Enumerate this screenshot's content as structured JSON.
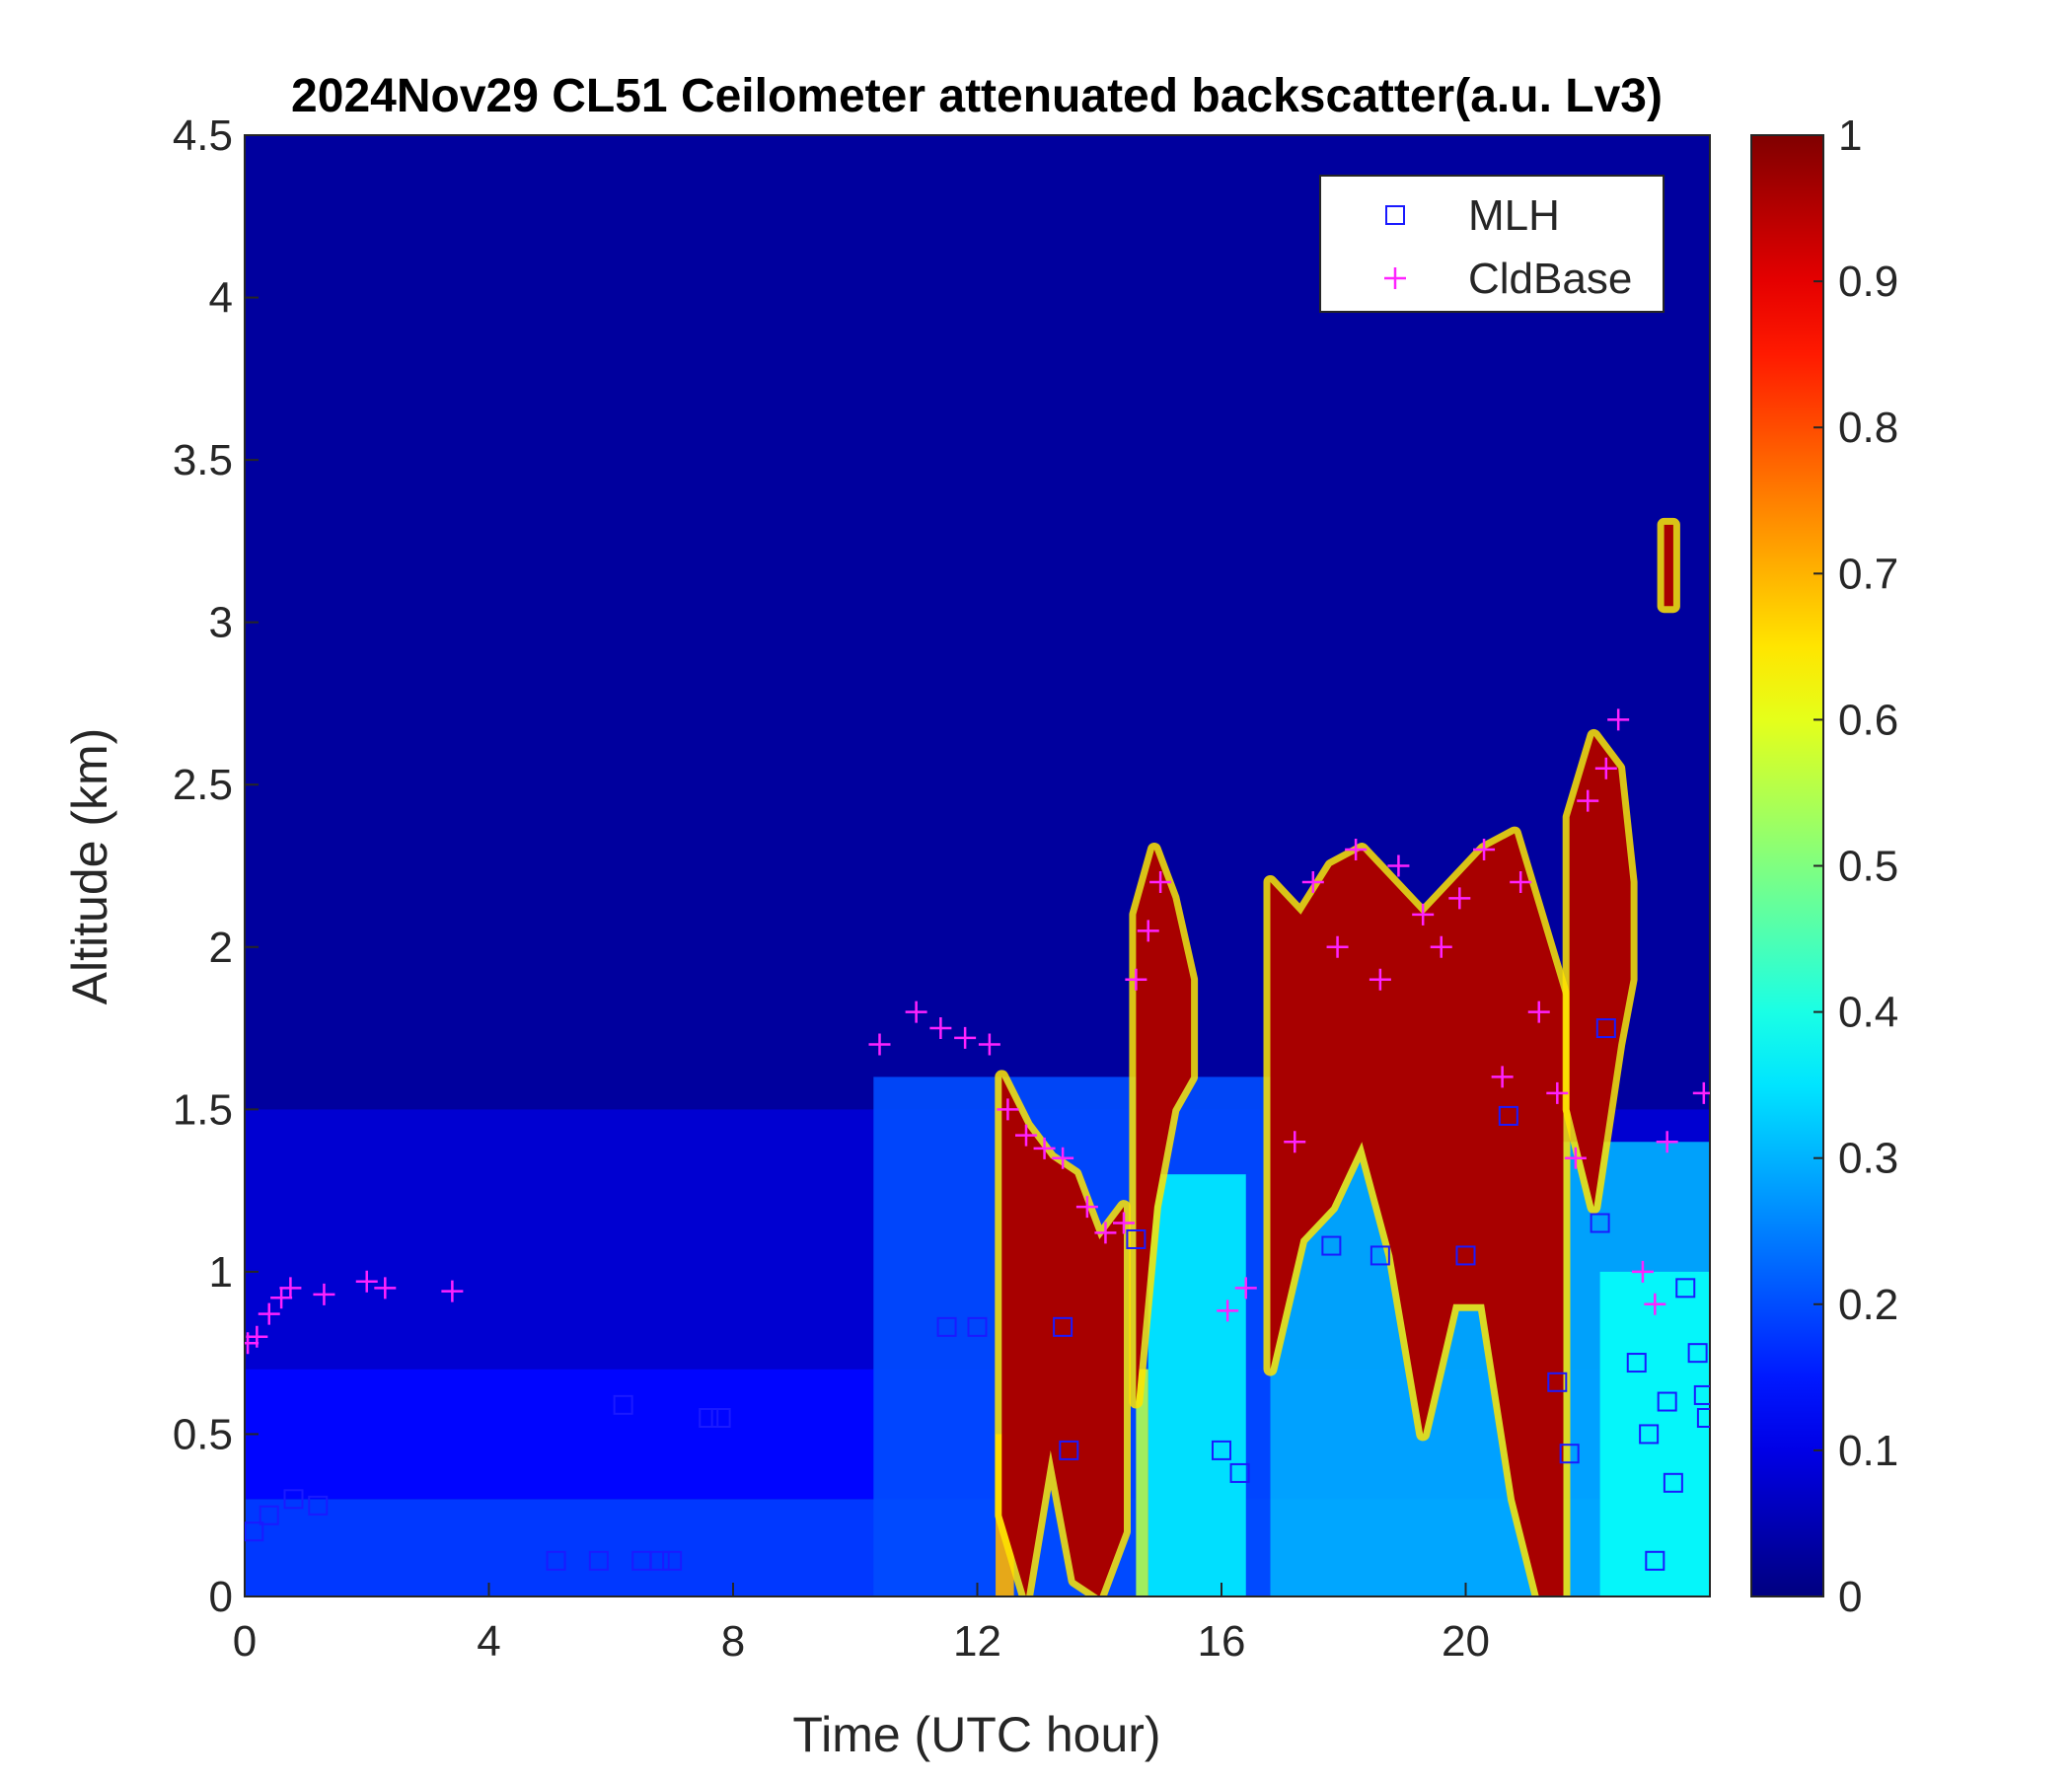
{
  "chart_data": {
    "type": "heatmap",
    "title": "2024Nov29 CL51 Ceilometer attenuated backscatter(a.u. Lv3)",
    "xlabel": "Time (UTC hour)",
    "ylabel": "Altitude (km)",
    "xlim": [
      0,
      24
    ],
    "ylim": [
      0,
      4.5
    ],
    "xticks": [
      0,
      4,
      8,
      12,
      16,
      20
    ],
    "xtick_labels": [
      "0",
      "4",
      "8",
      "12",
      "16",
      "20"
    ],
    "yticks": [
      0,
      0.5,
      1,
      1.5,
      2,
      2.5,
      3,
      3.5,
      4,
      4.5
    ],
    "ytick_labels": [
      "0",
      "0.5",
      "1",
      "1.5",
      "2",
      "2.5",
      "3",
      "3.5",
      "4",
      "4.5"
    ],
    "colorbar": {
      "colormap": "jet",
      "range": [
        0,
        1
      ],
      "ticks": [
        0,
        0.1,
        0.2,
        0.3,
        0.4,
        0.5,
        0.6,
        0.7,
        0.8,
        0.9,
        1
      ],
      "tick_labels": [
        "0",
        "0.1",
        "0.2",
        "0.3",
        "0.4",
        "0.5",
        "0.6",
        "0.7",
        "0.8",
        "0.9",
        "1"
      ]
    },
    "legend": {
      "placement": "top-right",
      "entries": [
        {
          "name": "MLH",
          "marker": "square",
          "color": "#1a1aff"
        },
        {
          "name": "CldBase",
          "marker": "plus",
          "color": "#ff22ff"
        }
      ]
    },
    "background_levels": [
      {
        "y0": 0,
        "y1": 0.3,
        "value": 0.18
      },
      {
        "y0": 0.3,
        "y1": 0.7,
        "value": 0.13
      },
      {
        "y0": 0.7,
        "y1": 1.5,
        "value": 0.08
      },
      {
        "y0": 1.5,
        "y1": 4.5,
        "value": 0.03
      }
    ],
    "field_patches": [
      {
        "x0": 10.3,
        "x1": 16.8,
        "y0": 0,
        "y1": 1.6,
        "value": 0.2
      },
      {
        "x0": 16.8,
        "x1": 24,
        "y0": 0,
        "y1": 1.4,
        "value": 0.3
      },
      {
        "x0": 14.8,
        "x1": 16.4,
        "y0": 0,
        "y1": 1.3,
        "value": 0.36
      },
      {
        "x0": 22.2,
        "x1": 24,
        "y0": 0,
        "y1": 1.0,
        "value": 0.38
      },
      {
        "x0": 12.3,
        "x1": 12.6,
        "y0": 0,
        "y1": 0.5,
        "value": 0.7
      },
      {
        "x0": 14.6,
        "x1": 14.8,
        "y0": 0,
        "y1": 0.7,
        "value": 0.55
      }
    ],
    "cloud_columns": [
      {
        "x": [
          12.4,
          12.8,
          13.2,
          13.6,
          14.0,
          14.4
        ],
        "top": [
          1.6,
          1.45,
          1.35,
          1.3,
          1.1,
          1.2
        ],
        "bottom": [
          0.25,
          0,
          0.45,
          0.05,
          0,
          0.2
        ],
        "value": 0.96
      },
      {
        "x": [
          14.6,
          14.9,
          15.2,
          15.5
        ],
        "top": [
          2.1,
          2.3,
          2.15,
          1.9
        ],
        "bottom": [
          0.6,
          1.2,
          1.5,
          1.6
        ],
        "value": 0.96
      },
      {
        "x": [
          16.8,
          17.3,
          17.8,
          18.3,
          18.8,
          19.3,
          19.8,
          20.3,
          20.8,
          21.2,
          21.6
        ],
        "top": [
          2.2,
          2.1,
          2.25,
          2.3,
          2.2,
          2.1,
          2.2,
          2.3,
          2.35,
          2.1,
          1.85
        ],
        "bottom": [
          0.7,
          1.1,
          1.2,
          1.4,
          1.05,
          0.5,
          0.9,
          0.9,
          0.3,
          0,
          0
        ],
        "value": 0.96
      },
      {
        "x": [
          21.7,
          22.1,
          22.5,
          22.7
        ],
        "top": [
          2.4,
          2.65,
          2.55,
          2.2
        ],
        "bottom": [
          1.5,
          1.2,
          1.7,
          1.9
        ],
        "value": 0.96
      },
      {
        "x": [
          23.25,
          23.4
        ],
        "top": [
          3.3,
          3.3
        ],
        "bottom": [
          3.05,
          3.05
        ],
        "value": 0.96
      }
    ],
    "series": [
      {
        "name": "MLH",
        "marker": "square",
        "x": [
          0.15,
          0.4,
          0.8,
          1.2,
          5.1,
          5.8,
          6.2,
          6.5,
          6.8,
          7.0,
          7.6,
          7.8,
          11.5,
          12.0,
          13.4,
          13.5,
          14.6,
          16.0,
          16.3,
          17.8,
          18.6,
          20.0,
          20.7,
          21.5,
          21.7,
          22.2,
          22.3,
          22.8,
          23.0,
          23.1,
          23.3,
          23.4,
          23.6,
          23.8,
          23.9,
          23.95
        ],
        "y": [
          0.2,
          0.25,
          0.3,
          0.28,
          0.11,
          0.11,
          0.59,
          0.11,
          0.11,
          0.11,
          0.55,
          0.55,
          0.83,
          0.83,
          0.83,
          0.45,
          1.1,
          0.45,
          0.38,
          1.08,
          1.05,
          1.05,
          1.48,
          0.66,
          0.44,
          1.15,
          1.75,
          0.72,
          0.5,
          0.11,
          0.6,
          0.35,
          0.95,
          0.75,
          0.62,
          0.55
        ]
      },
      {
        "name": "CldBase",
        "marker": "plus",
        "x": [
          0.05,
          0.2,
          0.4,
          0.6,
          0.75,
          1.3,
          2.0,
          2.3,
          3.4,
          10.4,
          11.0,
          11.4,
          11.8,
          12.2,
          12.5,
          12.8,
          13.1,
          13.4,
          13.8,
          14.1,
          14.4,
          14.6,
          14.8,
          15.0,
          16.1,
          16.4,
          17.2,
          17.5,
          17.9,
          18.2,
          18.6,
          18.9,
          19.3,
          19.6,
          19.9,
          20.3,
          20.6,
          20.9,
          21.2,
          21.5,
          21.8,
          22.0,
          22.3,
          22.5,
          22.9,
          23.1,
          23.3,
          23.9
        ],
        "y": [
          0.78,
          0.8,
          0.87,
          0.92,
          0.95,
          0.93,
          0.97,
          0.95,
          0.94,
          1.7,
          1.8,
          1.75,
          1.72,
          1.7,
          1.5,
          1.42,
          1.38,
          1.35,
          1.2,
          1.12,
          1.15,
          1.9,
          2.05,
          2.2,
          0.88,
          0.95,
          1.4,
          2.2,
          2.0,
          2.3,
          1.9,
          2.25,
          2.1,
          2.0,
          2.15,
          2.3,
          1.6,
          2.2,
          1.8,
          1.55,
          1.35,
          2.45,
          2.55,
          2.7,
          1.0,
          0.9,
          1.4,
          1.55
        ]
      }
    ]
  }
}
